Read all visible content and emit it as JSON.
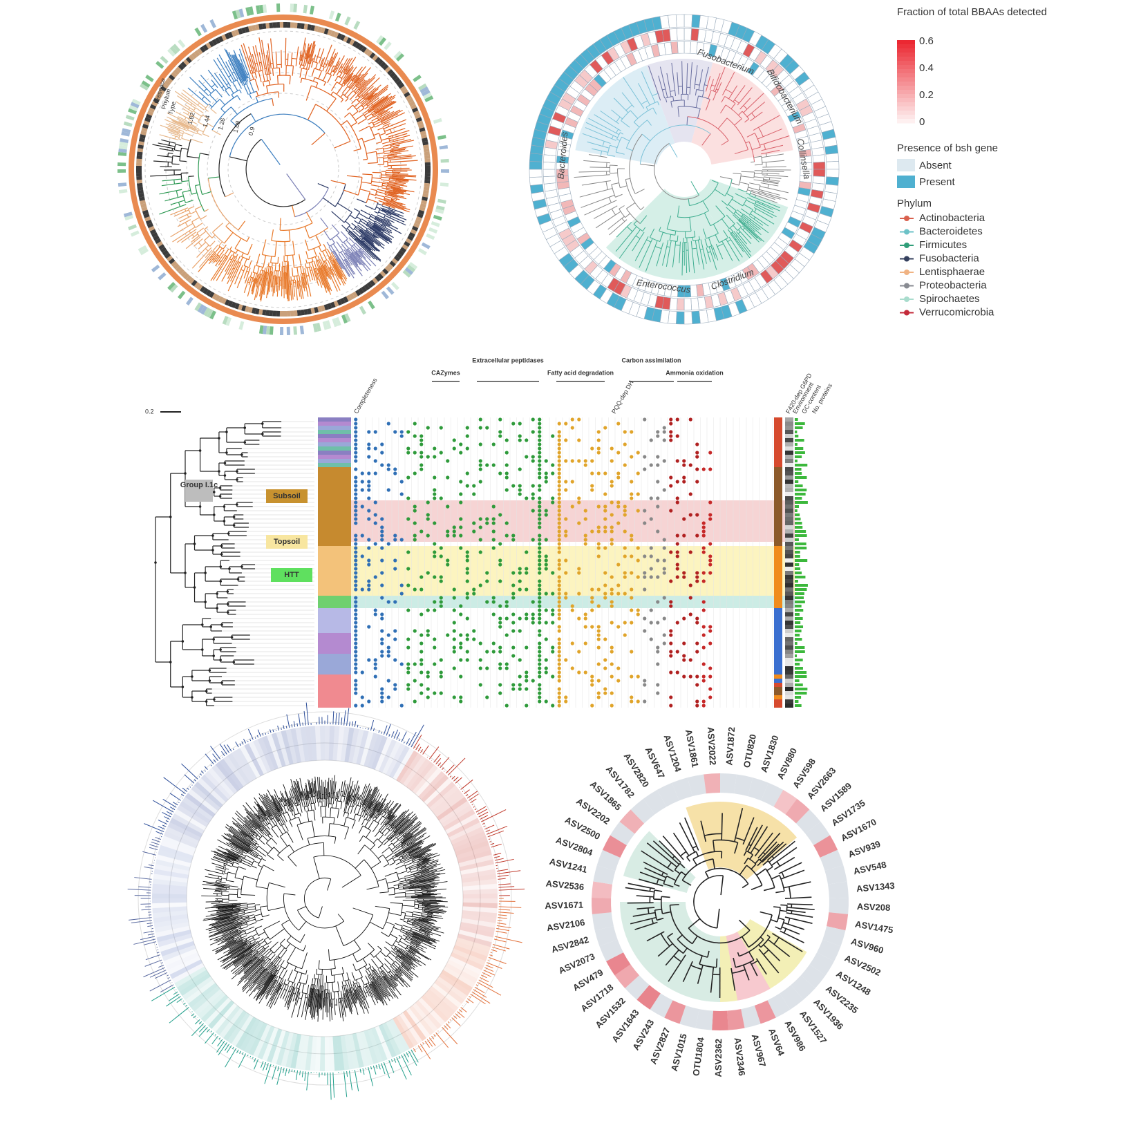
{
  "top_left": {
    "track_labels": [
      "Presence",
      "Phylum",
      "Type"
    ],
    "radial_ticks": [
      "1.62",
      "1.44",
      "1.26",
      "1.08",
      "0.9"
    ]
  },
  "top_right": {
    "clades": [
      "Fusobacterium",
      "Bifidobacterium",
      "Collinsella",
      "Bacteroides",
      "Enterococcus",
      "Clostridium"
    ],
    "legend": {
      "fraction_title": "Fraction of total BBAAs detected",
      "fraction_ticks": [
        "0.6",
        "0.4",
        "0.2",
        "0"
      ],
      "bsh_title": "Presence of bsh gene",
      "bsh_items": [
        {
          "name": "Absent",
          "color": "#dde9f0"
        },
        {
          "name": "Present",
          "color": "#4fb0d0"
        }
      ],
      "phylum_title": "Phylum",
      "phyla": [
        {
          "name": "Actinobacteria",
          "color": "#d9604d"
        },
        {
          "name": "Bacteroidetes",
          "color": "#6cc2c7"
        },
        {
          "name": "Firmicutes",
          "color": "#2f9e79"
        },
        {
          "name": "Fusobacteria",
          "color": "#34405e"
        },
        {
          "name": "Lentisphaerae",
          "color": "#f0b383"
        },
        {
          "name": "Proteobacteria",
          "color": "#888b92"
        },
        {
          "name": "Spirochaetes",
          "color": "#a9dccd"
        },
        {
          "name": "Verrucomicrobia",
          "color": "#c42a3a"
        }
      ]
    }
  },
  "middle": {
    "scale": "0.2",
    "group": "Group I.1c",
    "habitats": [
      "Subsoil",
      "Topsoil",
      "HTT"
    ],
    "headers": [
      "CAZymes",
      "Extracellular peptidases",
      "Fatty acid degradation",
      "Carbon assimilation",
      "Ammonia oxidation"
    ],
    "columns": [
      "Completeness",
      "PQQ-dep DH",
      "F420-dep G6PD",
      "Environment",
      "GC-content",
      "No. proteins"
    ]
  },
  "bottom_right": {
    "leaves": [
      "ASV1204",
      "ASV1861",
      "ASV2022",
      "ASV1872",
      "OTU820",
      "ASV1830",
      "ASV880",
      "ASV598",
      "ASV2663",
      "ASV1589",
      "ASV1735",
      "ASV1670",
      "ASV939",
      "ASV548",
      "ASV1343",
      "ASV208",
      "ASV1475",
      "ASV960",
      "ASV2502",
      "ASV1248",
      "ASV2235",
      "ASV1936",
      "ASV1527",
      "ASV986",
      "ASV64",
      "ASV967",
      "ASV2346",
      "ASV2362",
      "OTU1804",
      "ASV1015",
      "ASV2827",
      "ASV243",
      "ASV1643",
      "ASV1532",
      "ASV1718",
      "ASV479",
      "ASV2073",
      "ASV2842",
      "ASV2106",
      "ASV1671",
      "ASV2536",
      "ASV1241",
      "ASV2804",
      "ASV2500",
      "ASV2202",
      "ASV1865",
      "ASV1782",
      "ASV2820",
      "ASV647"
    ]
  }
}
